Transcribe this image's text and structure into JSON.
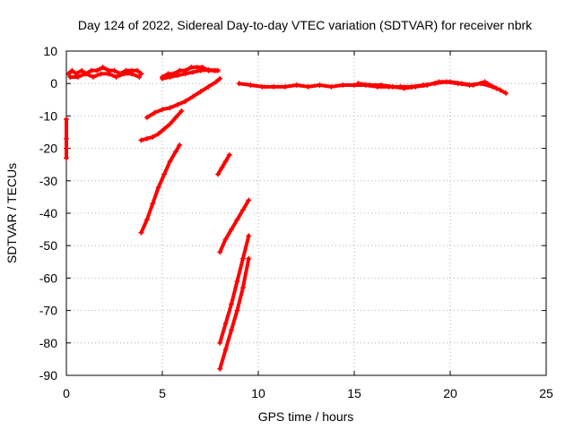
{
  "chart_data": {
    "type": "scatter",
    "title": "Day 124 of 2022, Sidereal Day-to-day VTEC variation (SDTVAR) for receiver nbrk",
    "xlabel": "GPS time / hours",
    "ylabel": "SDTVAR / TECUs",
    "xlim": [
      0,
      25
    ],
    "ylim": [
      -90,
      10
    ],
    "xticks": [
      0,
      5,
      10,
      15,
      20,
      25
    ],
    "yticks": [
      10,
      0,
      -10,
      -20,
      -30,
      -40,
      -50,
      -60,
      -70,
      -80,
      -90
    ],
    "grid": true,
    "marker": "+",
    "color": "#ff0000",
    "series": [
      {
        "x": [
          0.1,
          0.3,
          0.5,
          0.8,
          1.0,
          1.3,
          1.6,
          1.9,
          2.2,
          2.5,
          2.8,
          3.1,
          3.4,
          3.7,
          3.9
        ],
        "y": [
          3,
          4,
          3,
          4,
          3,
          4,
          4,
          5,
          4,
          4,
          3,
          4,
          4,
          4,
          3
        ]
      },
      {
        "x": [
          0.2,
          0.6,
          1.0,
          1.4,
          1.8,
          2.2,
          2.6,
          3.0,
          3.4,
          3.8
        ],
        "y": [
          2,
          2,
          3,
          2,
          3,
          3,
          2,
          3,
          3,
          2
        ]
      },
      {
        "x": [
          5.0,
          5.3,
          5.6,
          5.9,
          6.2,
          6.5,
          6.8,
          7.1,
          7.4,
          7.7,
          7.9
        ],
        "y": [
          2,
          3,
          3,
          4,
          4,
          5,
          5,
          5,
          4,
          4,
          4
        ]
      },
      {
        "x": [
          5.0,
          5.4,
          5.8,
          6.2,
          6.6,
          7.0,
          7.4,
          7.8
        ],
        "y": [
          1.5,
          2,
          2.5,
          3,
          3.5,
          4,
          4.2,
          4
        ]
      },
      {
        "x": [
          4.2,
          4.6,
          5.0,
          5.4,
          5.8,
          6.2,
          6.6,
          7.0,
          7.4,
          7.8,
          8.0
        ],
        "y": [
          -10.5,
          -9,
          -8,
          -7.5,
          -6.5,
          -5.5,
          -4,
          -2.5,
          -1,
          0.5,
          1.5
        ]
      },
      {
        "x": [
          3.9,
          4.2,
          4.5,
          4.8,
          5.1,
          5.4,
          5.7,
          6.0
        ],
        "y": [
          -17.5,
          -17,
          -16.5,
          -15.5,
          -14,
          -12.5,
          -10.5,
          -8.5
        ]
      },
      {
        "x": [
          3.9,
          4.2,
          4.5,
          4.8,
          5.1,
          5.4,
          5.7,
          5.9
        ],
        "y": [
          -46,
          -42,
          -37,
          -32,
          -28,
          -24,
          -21,
          -19
        ]
      },
      {
        "x": [
          7.9,
          8.1,
          8.3,
          8.5
        ],
        "y": [
          -28,
          -26,
          -24,
          -22
        ]
      },
      {
        "x": [
          8.0,
          8.3,
          8.6,
          8.9,
          9.2,
          9.5
        ],
        "y": [
          -52,
          -48,
          -45,
          -42,
          -39,
          -36
        ]
      },
      {
        "x": [
          8.0,
          8.3,
          8.6,
          8.9,
          9.2,
          9.5
        ],
        "y": [
          -80,
          -74,
          -68,
          -61,
          -54,
          -47
        ]
      },
      {
        "x": [
          8.0,
          8.3,
          8.6,
          8.9,
          9.2,
          9.5
        ],
        "y": [
          -88,
          -82,
          -76,
          -70,
          -63,
          -54
        ]
      },
      {
        "x": [
          0.0,
          0.0,
          0.0,
          0.0
        ],
        "y": [
          -11,
          -17,
          -20,
          -23
        ]
      },
      {
        "x": [
          9.0,
          9.6,
          10.2,
          10.8,
          11.4,
          12.0,
          12.6,
          13.2,
          13.8,
          14.4,
          15.0,
          15.6,
          16.2,
          16.8,
          17.4,
          18.0,
          18.6,
          19.2,
          19.8,
          20.4,
          21.0,
          21.6,
          22.2,
          22.6,
          22.9
        ],
        "y": [
          0,
          -0.5,
          -1,
          -1,
          -1,
          -0.5,
          -1,
          -0.5,
          -1,
          -0.5,
          -0.5,
          -0.5,
          -1,
          -1,
          -1,
          -1,
          -0.5,
          0,
          0.5,
          0,
          -0.5,
          0,
          -1,
          -2,
          -3
        ]
      },
      {
        "x": [
          15.2,
          15.8,
          16.4,
          17.0,
          17.6,
          18.2,
          18.8,
          19.4,
          20.0,
          20.6,
          21.2,
          21.8,
          22.4
        ],
        "y": [
          0,
          -0.5,
          -0.5,
          -1,
          -1.5,
          -1,
          -0.5,
          0.5,
          0.5,
          0,
          -0.5,
          0.5,
          -1.5
        ]
      }
    ]
  }
}
